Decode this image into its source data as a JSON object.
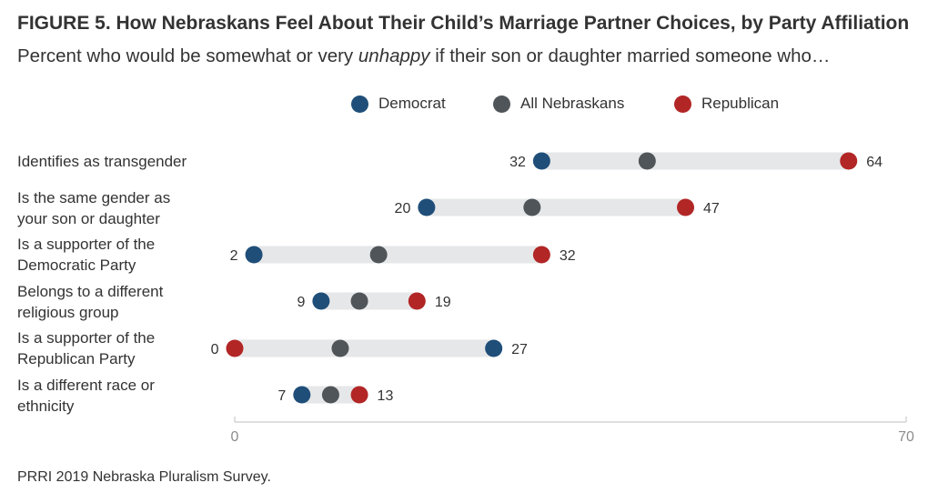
{
  "title": "FIGURE 5. How Nebraskans Feel About Their Child’s Marriage Partner Choices, by Party Affiliation",
  "subtitle_pre": "Percent who would be somewhat or very ",
  "subtitle_em": "unhappy",
  "subtitle_post": " if their son or daughter married someone who…",
  "source": "PRRI 2019 Nebraska Pluralism Survey.",
  "colors": {
    "democrat": "#1f4e79",
    "all": "#505559",
    "republican": "#b22626",
    "track": "#e6e7e8",
    "axis": "#d3d4d5",
    "tick_text": "#8c8c8c"
  },
  "chart_data": {
    "type": "dot-range",
    "xlim": [
      0,
      70
    ],
    "ticks": [
      "0",
      "70"
    ],
    "legend": [
      "Democrat",
      "All Nebraskans",
      "Republican"
    ],
    "legend_placement": "top-center",
    "categories": [
      "Identifies as transgender",
      "Is the same gender as your son or daughter",
      "Is a supporter of the Democratic Party",
      "Belongs to a different religious group",
      "Is a supporter of the Republican Party",
      "Is a different race or ethnicity"
    ],
    "series": [
      {
        "name": "Democrat",
        "values": [
          32,
          20,
          2,
          9,
          27,
          7
        ]
      },
      {
        "name": "All Nebraskans",
        "values": [
          43,
          31,
          15,
          13,
          11,
          10
        ]
      },
      {
        "name": "Republican",
        "values": [
          64,
          47,
          32,
          19,
          0,
          13
        ]
      }
    ],
    "data_labels": [
      {
        "low": "32",
        "high": "64"
      },
      {
        "low": "20",
        "high": "47"
      },
      {
        "low": "2",
        "high": "32"
      },
      {
        "low": "9",
        "high": "19"
      },
      {
        "low": "0",
        "high": "27"
      },
      {
        "low": "7",
        "high": "13"
      }
    ]
  },
  "labels": {
    "row1": [
      "Identifies as transgender"
    ],
    "row2": [
      "Is the same gender as",
      "your son or daughter"
    ],
    "row3": [
      "Is a supporter of the",
      "Democratic Party"
    ],
    "row4": [
      "Belongs to a different",
      "religious group"
    ],
    "row5": [
      "Is a supporter of the",
      "Republican Party"
    ],
    "row6": [
      "Is a different race or",
      "ethnicity"
    ]
  }
}
